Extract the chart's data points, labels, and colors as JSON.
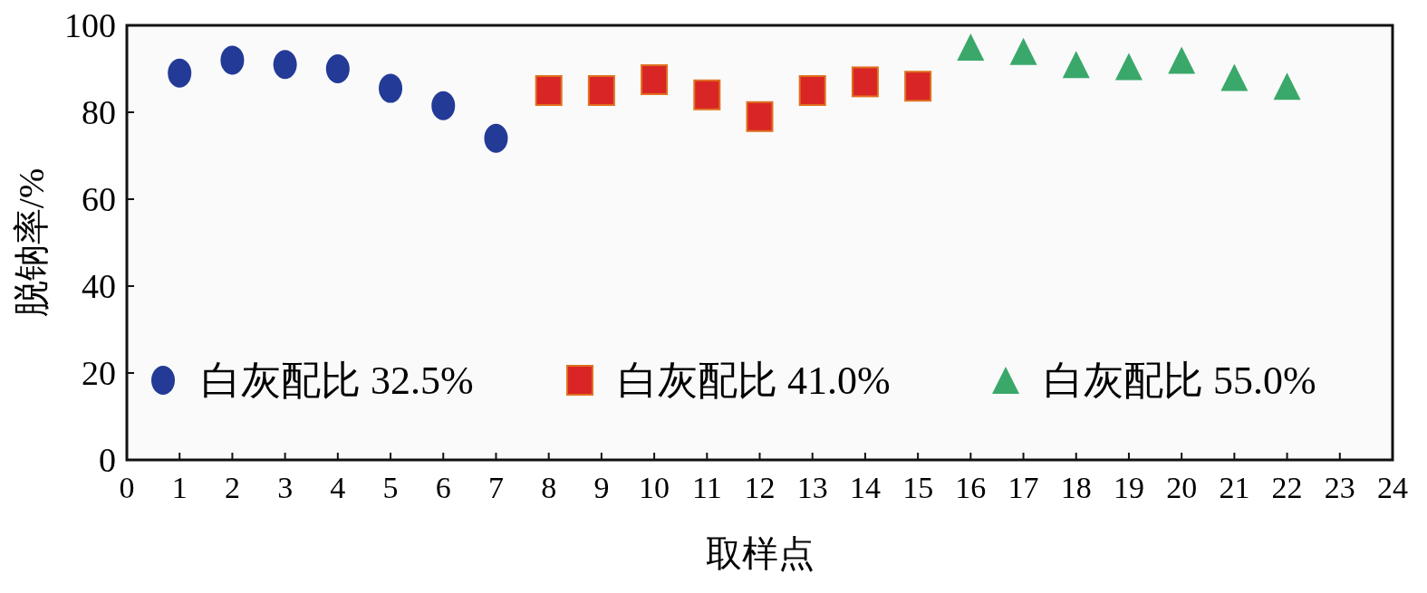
{
  "chart_data": {
    "type": "scatter",
    "xlabel": "取样点",
    "ylabel": "脱钠率/%",
    "xlim": [
      0,
      24
    ],
    "xticks": [
      0,
      1,
      2,
      3,
      4,
      5,
      6,
      7,
      8,
      9,
      10,
      11,
      12,
      13,
      14,
      15,
      16,
      17,
      18,
      19,
      20,
      21,
      22,
      23,
      24
    ],
    "ylim": [
      0,
      100
    ],
    "yticks": [
      0,
      20,
      40,
      60,
      80,
      100
    ],
    "legend": "bottom left",
    "series": [
      {
        "name": "白灰配比 32.5%",
        "color": "#233a96",
        "marker": "circle",
        "x": [
          1,
          2,
          3,
          4,
          5,
          6,
          7
        ],
        "values": [
          89,
          92,
          91,
          90,
          85.5,
          81.5,
          74
        ]
      },
      {
        "name": "白灰配比 41.0%",
        "color": "#d92525",
        "marker": "square",
        "x": [
          8,
          9,
          10,
          11,
          12,
          13,
          14,
          15
        ],
        "values": [
          85,
          85,
          87.5,
          84,
          79,
          85,
          87,
          86
        ]
      },
      {
        "name": "白灰配比 55.0%",
        "color": "#3aa86a",
        "marker": "triangle",
        "x": [
          16,
          17,
          18,
          19,
          20,
          21,
          22
        ],
        "values": [
          95,
          94,
          91,
          90.5,
          92,
          88,
          86
        ]
      }
    ]
  }
}
